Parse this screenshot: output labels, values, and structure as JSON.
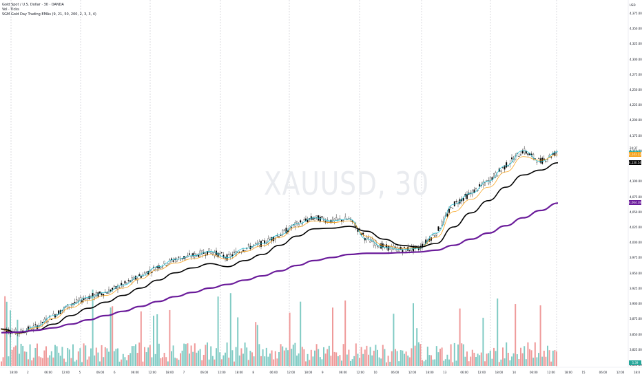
{
  "legend": {
    "symbol": "Gold Spot / U.S. Dollar · 30 · OANDA",
    "volume": "Vol · Ticks",
    "indicator": "SGM Gold Day Trading EMAs (9, 21, 50, 200, 2, 3, 3, 4)"
  },
  "watermark": "XAUUSD, 30",
  "price_axis": {
    "currency": "USD",
    "labels": [
      "4,375.000",
      "4,350.000",
      "4,325.000",
      "4,300.000",
      "4,275.000",
      "4,250.000",
      "4,225.000",
      "4,200.000",
      "4,175.000",
      "4,150.000",
      "4,100.000",
      "4,075.000",
      "4,050.000",
      "4,025.000",
      "4,000.000",
      "3,975.000",
      "3,950.000",
      "3,925.000",
      "3,900.000",
      "3,875.000",
      "3,850.000",
      "3,825.000",
      "3,800.000"
    ],
    "last_price_text": "24:37",
    "tags": [
      {
        "text": "4,145.994",
        "color": "#26a69a"
      },
      {
        "text": "4,143.224",
        "color": "#f7a21b"
      },
      {
        "text": "4,130.541",
        "color": "#000000"
      },
      {
        "text": "4,064.387",
        "color": "#6a1b9a"
      },
      {
        "text": "5.39",
        "color": "#26a69a"
      }
    ]
  },
  "time_axis": {
    "labels": [
      "18:00",
      "2",
      "06:00",
      "12:00",
      "5",
      "06:00",
      "6",
      "06:00",
      "12:00",
      "18:00",
      "7",
      "06:00",
      "12:00",
      "18:00",
      "8",
      "06:00",
      "12:00",
      "18:00",
      "9",
      "06:00",
      "12:00",
      "10",
      "06:00",
      "12:00",
      "18:00",
      "13",
      "06:00",
      "12:00",
      "18:00",
      "14",
      "06:00",
      "12:00",
      "18:00",
      "15",
      "06:00",
      "12:00",
      "18:0"
    ]
  },
  "colors": {
    "ema9": "#26c6da",
    "ema21": "#f7a21b",
    "ema50": "#000000",
    "ema200": "#6a1b9a",
    "vol_up": "#80cbc4",
    "vol_down": "#ef9a9a",
    "candle": "#000000"
  },
  "chart_data": {
    "type": "line",
    "x": [
      "1 18:00",
      "2",
      "2 06:00",
      "2 12:00",
      "5",
      "5 06:00",
      "6",
      "6 06:00",
      "6 12:00",
      "6 18:00",
      "7",
      "7 06:00",
      "7 12:00",
      "7 18:00",
      "8",
      "8 06:00",
      "8 12:00",
      "8 18:00",
      "9",
      "9 06:00",
      "9 12:00",
      "10",
      "10 06:00",
      "10 12:00",
      "10 18:00",
      "13",
      "13 06:00",
      "13 12:00",
      "13 18:00",
      "14",
      "14 06:00",
      "14 12:00",
      "14 18:00"
    ],
    "series": [
      {
        "values": [
          3858,
          3852,
          3862,
          3880,
          3898,
          3910,
          3918,
          3930,
          3945,
          3960,
          3972,
          3978,
          3985,
          3975,
          3990,
          3998,
          4012,
          4030,
          4040,
          4035,
          4038,
          4005,
          3992,
          3988,
          3990,
          4015,
          4062,
          4080,
          4100,
          4125,
          4150,
          4132,
          4148
        ]
      },
      {
        "values": [
          3857,
          3851,
          3860,
          3875,
          3893,
          3905,
          3913,
          3925,
          3940,
          3955,
          3966,
          3973,
          3980,
          3972,
          3985,
          3994,
          4008,
          4025,
          4035,
          4032,
          4035,
          4010,
          3995,
          3990,
          3991,
          4008,
          4050,
          4070,
          4090,
          4115,
          4140,
          4134,
          4143
        ]
      },
      {
        "values": [
          3858,
          3852,
          3856,
          3866,
          3880,
          3892,
          3902,
          3913,
          3925,
          3938,
          3950,
          3958,
          3965,
          3960,
          3970,
          3980,
          3995,
          4010,
          4022,
          4023,
          4026,
          4018,
          4005,
          3995,
          3992,
          3998,
          4025,
          4048,
          4068,
          4090,
          4110,
          4118,
          4130
        ]
      },
      {
        "values": [
          3852,
          3853,
          3856,
          3860,
          3866,
          3873,
          3880,
          3887,
          3895,
          3903,
          3911,
          3918,
          3925,
          3931,
          3938,
          3945,
          3953,
          3962,
          3970,
          3975,
          3980,
          3982,
          3982,
          3983,
          3984,
          3987,
          3995,
          4005,
          4015,
          4027,
          4040,
          4052,
          4064
        ]
      }
    ],
    "ylim": [
      3800,
      4385
    ]
  }
}
